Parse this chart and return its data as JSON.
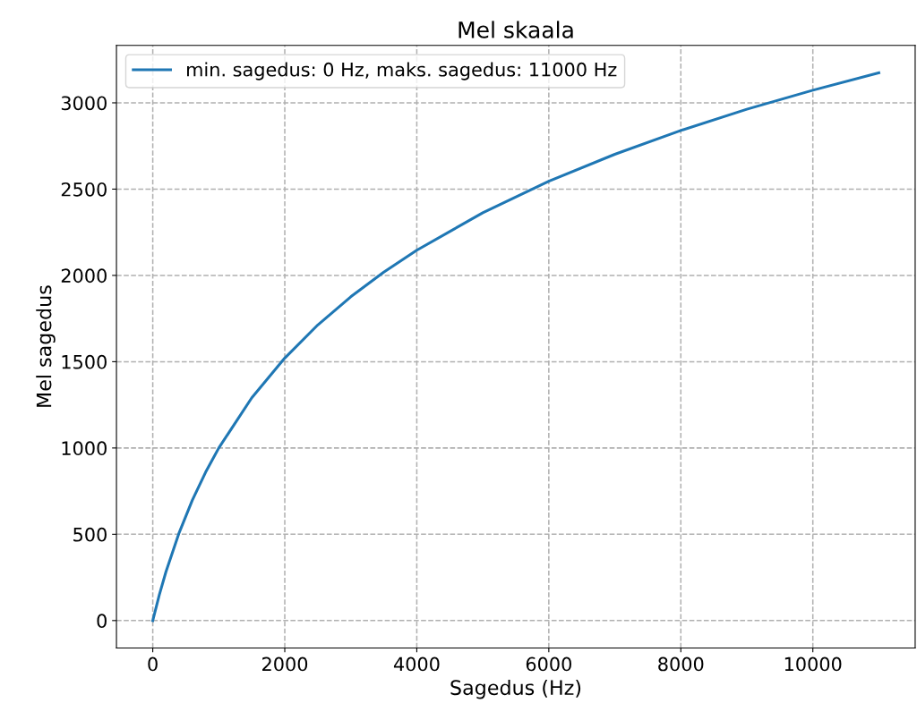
{
  "chart_data": {
    "type": "line",
    "title": "Mel skaala",
    "xlabel": "Sagedus (Hz)",
    "ylabel": "Mel sagedus",
    "series": [
      {
        "name": "min. sagedus: 0 Hz, maks. sagedus: 11000 Hz",
        "color": "#1f77b4",
        "x": [
          0,
          100,
          200,
          400,
          600,
          800,
          1000,
          1500,
          2000,
          2500,
          3000,
          3500,
          4000,
          5000,
          6000,
          7000,
          8000,
          9000,
          10000,
          11000
        ],
        "values": [
          0,
          150,
          283,
          509,
          698,
          859,
          1000,
          1291,
          1521,
          1713,
          1876,
          2019,
          2146,
          2363,
          2546,
          2702,
          2840,
          2963,
          3073,
          3174
        ]
      }
    ],
    "xlim": [
      -550,
      11550
    ],
    "xticks": [
      0,
      2000,
      4000,
      6000,
      8000,
      10000
    ],
    "ylim": [
      -159,
      3333
    ],
    "yticks": [
      0,
      500,
      1000,
      1500,
      2000,
      2500,
      3000
    ],
    "grid": true,
    "legend": "upper left",
    "line_style": "solid",
    "marker": "none"
  }
}
